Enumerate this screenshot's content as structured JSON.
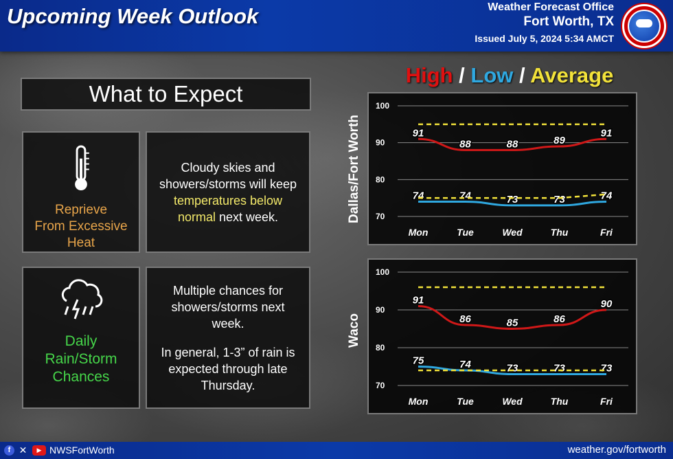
{
  "header": {
    "title": "Upcoming Week Outlook",
    "office": "Weather Forecast Office",
    "city": "Fort Worth, TX",
    "issued": "Issued July 5, 2024 5:34 AMCT"
  },
  "left": {
    "section_title": "What to Expect",
    "card1": {
      "label_lines": [
        "Reprieve",
        "From Excessive",
        "Heat"
      ],
      "desc_pre": "Cloudy skies and showers/storms will keep",
      "desc_highlight": "temperatures below normal",
      "desc_post": "next week."
    },
    "card2": {
      "label_lines": [
        "Daily",
        "Rain/Storm",
        "Chances"
      ],
      "desc_p1": "Multiple chances for showers/storms next week.",
      "desc_p2": "In general, 1-3” of rain is expected through late Thursday."
    }
  },
  "legend": {
    "high": "High",
    "sep1": " / ",
    "low": "Low",
    "sep2": " / ",
    "average": "Average",
    "colors": {
      "high": "#e01010",
      "low": "#2fa8e0",
      "average": "#f2e23a"
    }
  },
  "chart_data": [
    {
      "type": "line",
      "location": "Dallas/Fort Worth",
      "categories": [
        "Mon",
        "Tue",
        "Wed",
        "Thu",
        "Fri"
      ],
      "ylim": [
        70,
        100
      ],
      "yticks": [
        70,
        80,
        90,
        100
      ],
      "series": [
        {
          "name": "High",
          "color": "#d01818",
          "values": [
            91,
            88,
            88,
            89,
            91
          ],
          "labels": true
        },
        {
          "name": "Low",
          "color": "#2fa8e0",
          "values": [
            74,
            74,
            73,
            73,
            74
          ],
          "labels": true
        },
        {
          "name": "Average",
          "color": "#f2e23a",
          "dashed": true,
          "values": [
            95,
            95,
            95,
            95,
            95
          ],
          "labels": false
        },
        {
          "name": "Average",
          "color": "#f2e23a",
          "dashed": true,
          "values": [
            75,
            75,
            75,
            75,
            76
          ],
          "labels": false
        }
      ]
    },
    {
      "type": "line",
      "location": "Waco",
      "categories": [
        "Mon",
        "Tue",
        "Wed",
        "Thu",
        "Fri"
      ],
      "ylim": [
        70,
        100
      ],
      "yticks": [
        70,
        80,
        90,
        100
      ],
      "series": [
        {
          "name": "High",
          "color": "#d01818",
          "values": [
            91,
            86,
            85,
            86,
            90
          ],
          "labels": true
        },
        {
          "name": "Low",
          "color": "#2fa8e0",
          "values": [
            75,
            74,
            73,
            73,
            73
          ],
          "labels": true
        },
        {
          "name": "Average",
          "color": "#f2e23a",
          "dashed": true,
          "values": [
            96,
            96,
            96,
            96,
            96
          ],
          "labels": false
        },
        {
          "name": "Average",
          "color": "#f2e23a",
          "dashed": true,
          "values": [
            74,
            74,
            74,
            74,
            74
          ],
          "labels": false
        }
      ]
    }
  ],
  "footer": {
    "handle": "NWSFortWorth",
    "url": "weather.gov/fortworth",
    "social_icons": [
      "facebook-icon",
      "x-icon",
      "youtube-icon"
    ]
  }
}
